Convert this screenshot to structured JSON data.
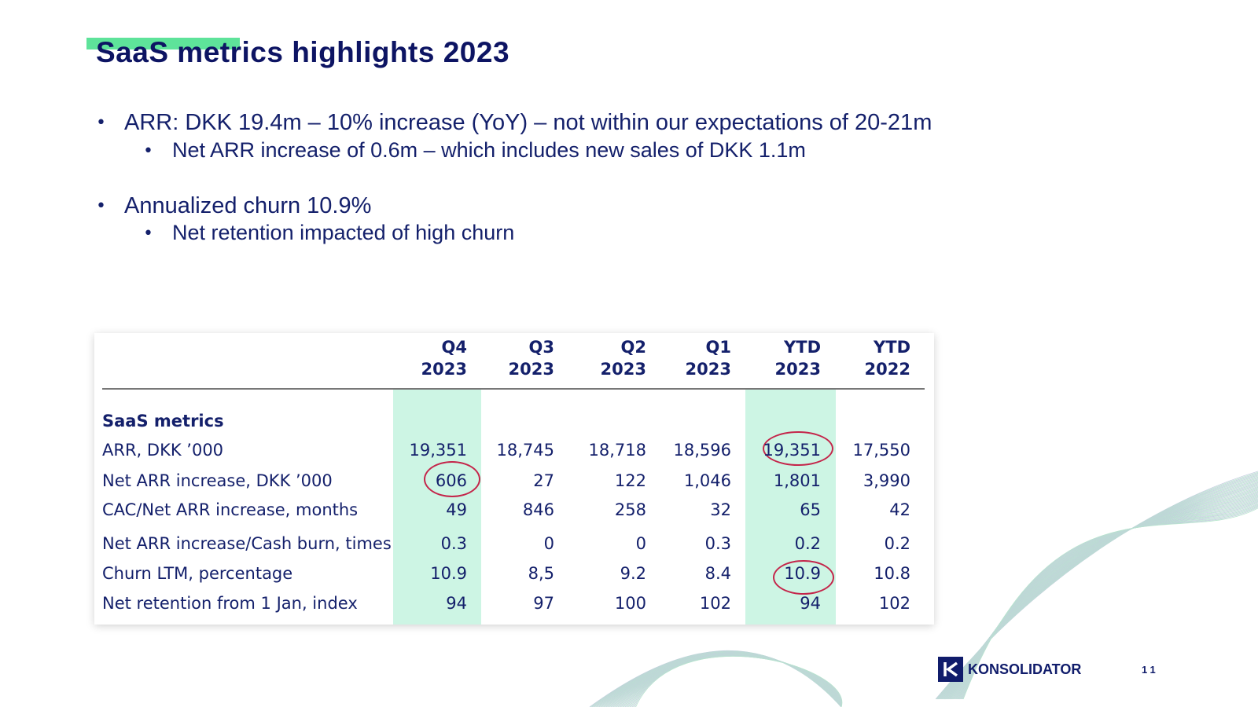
{
  "header": {
    "title": "SaaS metrics highlights 2023"
  },
  "bullets": [
    {
      "text": "ARR: DKK 19.4m – 10% increase (YoY) – not within our expectations of 20-21m",
      "sub": [
        "Net ARR increase of 0.6m – which includes new sales of DKK 1.1m"
      ]
    },
    {
      "text": "Annualized churn 10.9%",
      "sub": [
        "Net retention impacted of high churn"
      ]
    }
  ],
  "table": {
    "columns": [
      {
        "label": "Q4",
        "year": "2023"
      },
      {
        "label": "Q3",
        "year": "2023"
      },
      {
        "label": "Q2",
        "year": "2023"
      },
      {
        "label": "Q1",
        "year": "2023"
      },
      {
        "label": "YTD",
        "year": "2023"
      },
      {
        "label": "YTD",
        "year": "2022"
      }
    ],
    "section": "SaaS metrics",
    "rows": [
      {
        "label": "ARR, DKK ’000",
        "values": [
          "19,351",
          "18,745",
          "18,718",
          "18,596",
          "19,351",
          "17,550"
        ]
      },
      {
        "label": "Net ARR increase, DKK ’000",
        "values": [
          "606",
          "27",
          "122",
          "1,046",
          "1,801",
          "3,990"
        ]
      },
      {
        "label": "CAC/Net ARR increase, months",
        "values": [
          "49",
          "846",
          "258",
          "32",
          "65",
          "42"
        ]
      },
      {
        "label": "Net ARR increase/Cash burn, times",
        "values": [
          "0.3",
          "0",
          "0",
          "0.3",
          "0.2",
          "0.2"
        ]
      },
      {
        "label": "Churn LTM, percentage",
        "values": [
          "10.9",
          "8,5",
          "9.2",
          "8.4",
          "10.9",
          "10.8"
        ]
      },
      {
        "label": "Net retention from 1 Jan, index",
        "values": [
          "94",
          "97",
          "100",
          "102",
          "94",
          "102"
        ]
      }
    ]
  },
  "footer": {
    "logo": "KONSOLIDATOR",
    "page": "11"
  }
}
